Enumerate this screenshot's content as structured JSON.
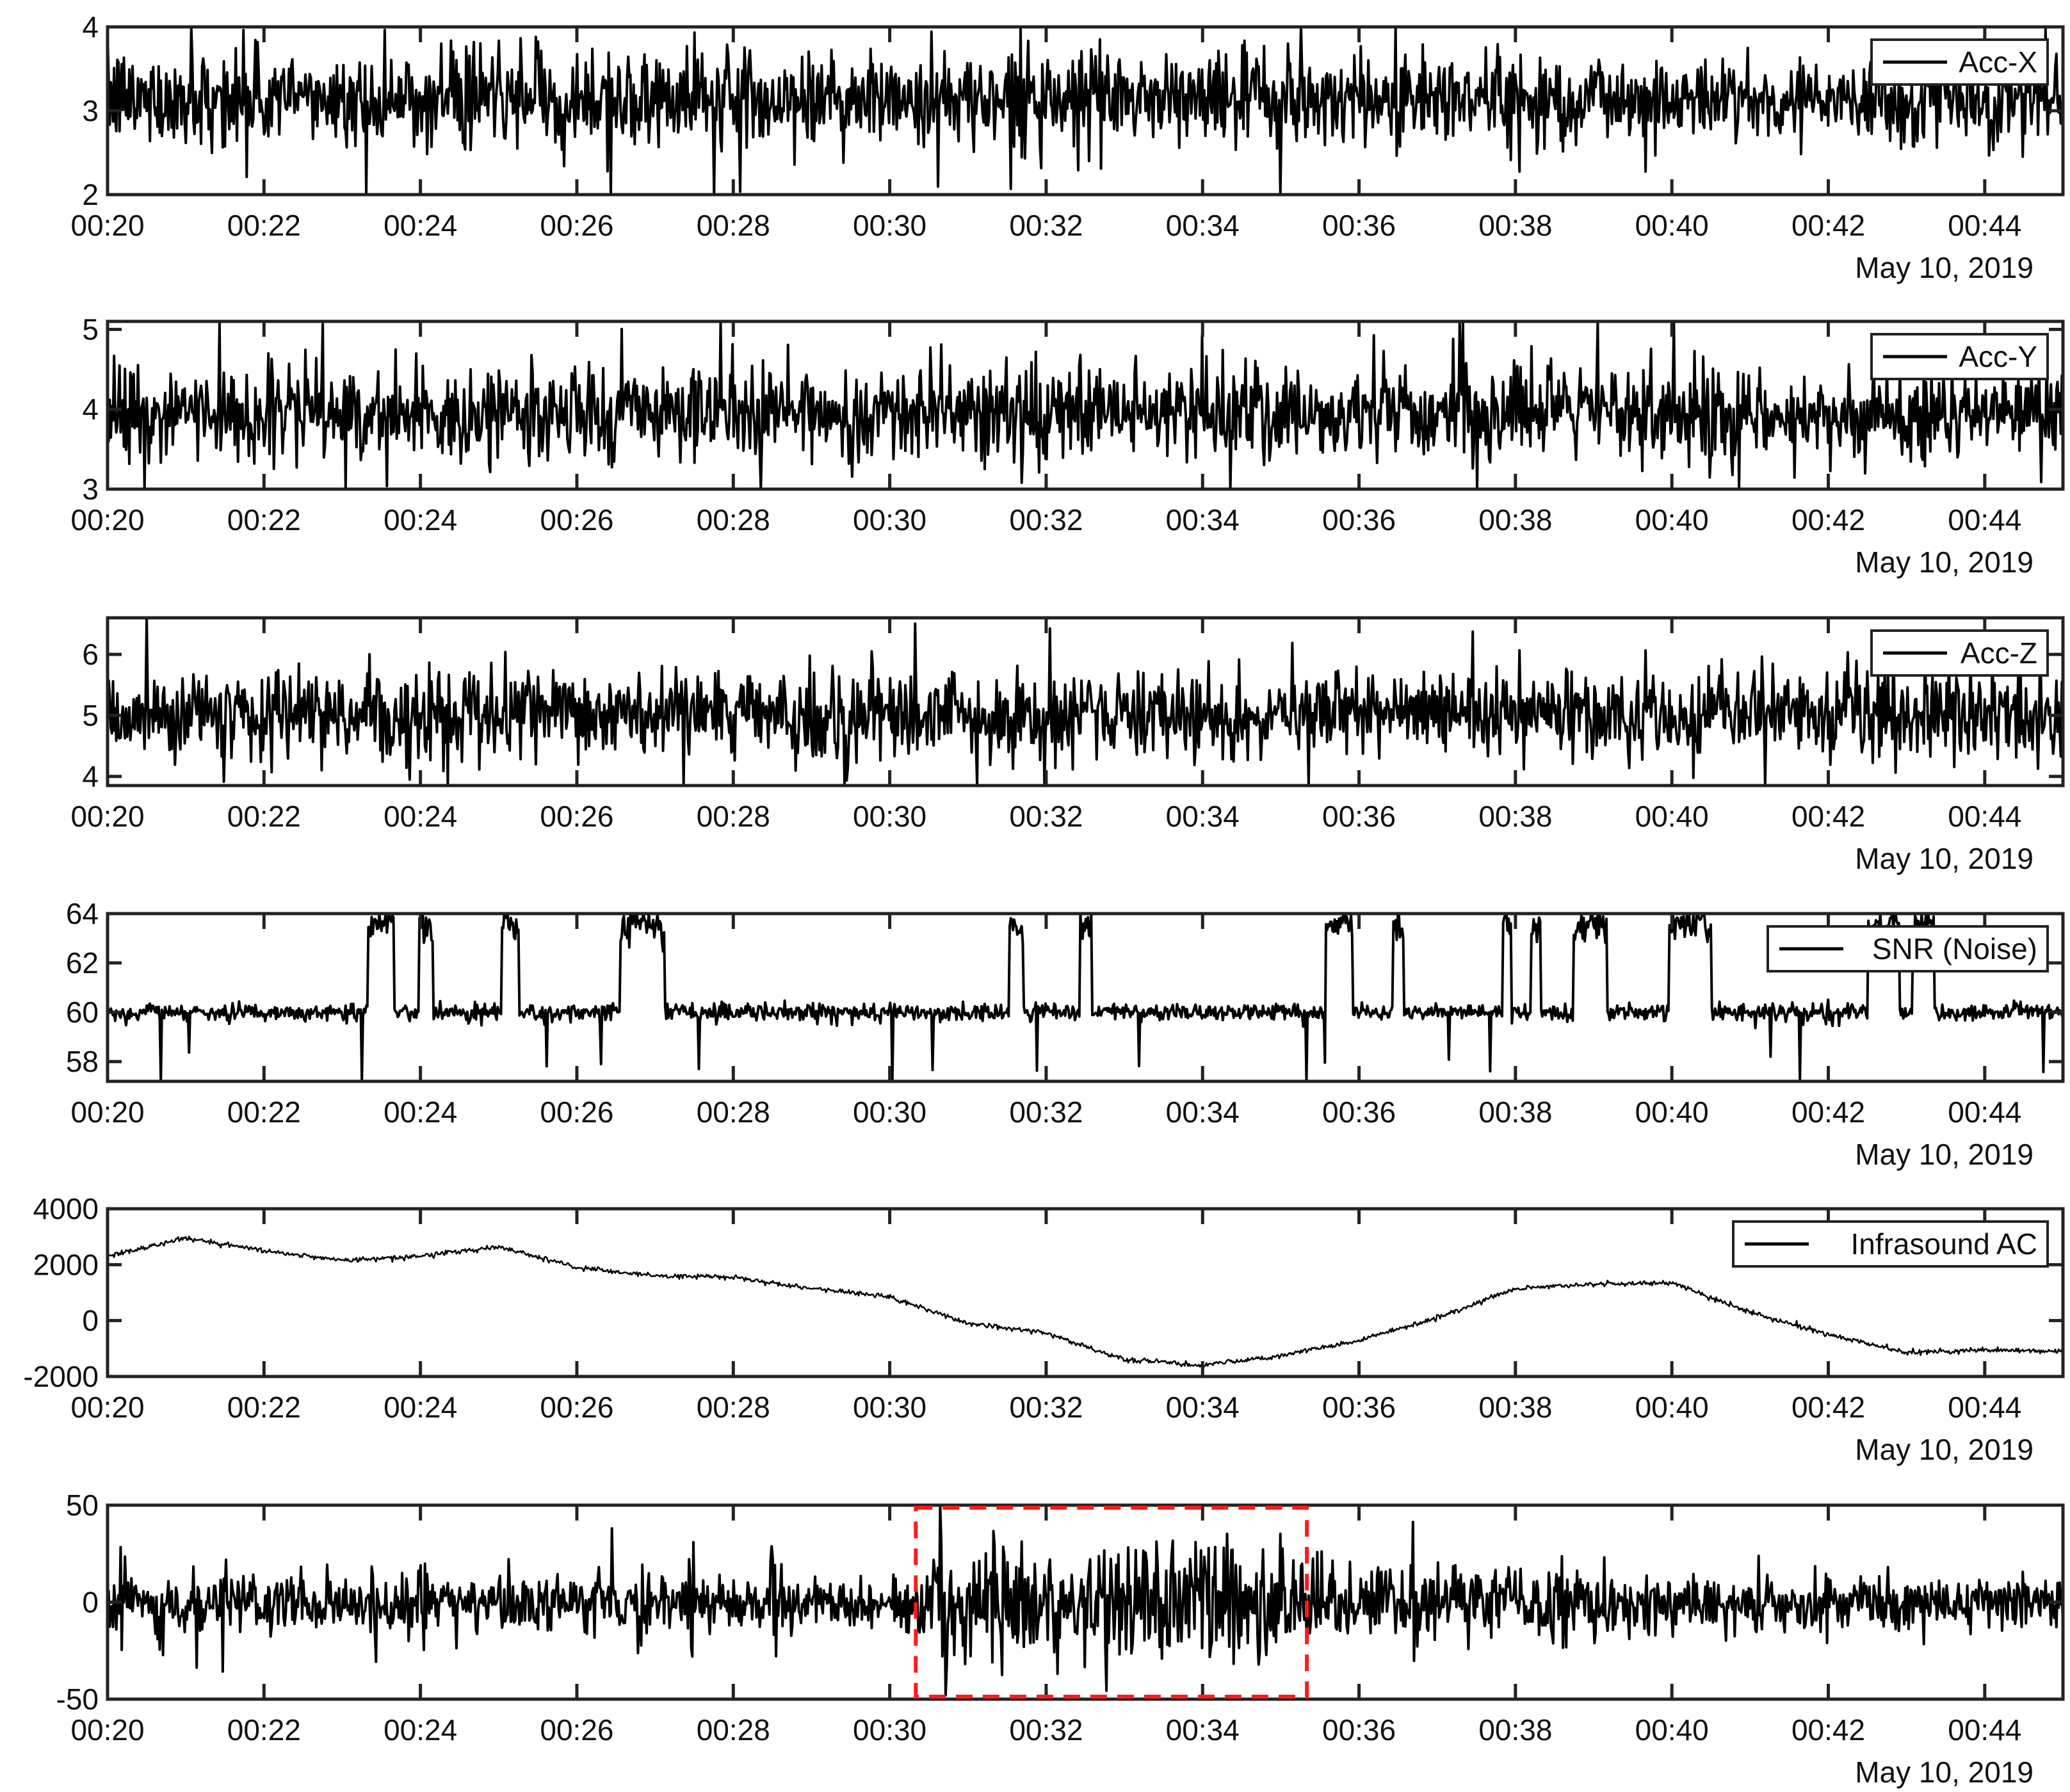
{
  "figure": {
    "panels": 6,
    "line_color": "#000000",
    "highlight_color": "#ff1a1a",
    "background": "#ffffff"
  },
  "chart_data": [
    {
      "type": "line",
      "series": [
        {
          "name": "Acc-X",
          "baseline": 3.15,
          "noise": 0.28,
          "values": []
        }
      ],
      "x": {
        "range": [
          "00:20",
          "00:45"
        ],
        "tick_labels": [
          "00:20",
          "00:22",
          "00:24",
          "00:26",
          "00:28",
          "00:30",
          "00:32",
          "00:34",
          "00:36",
          "00:38",
          "00:40",
          "00:42",
          "00:44"
        ]
      },
      "ylim": [
        2,
        4
      ],
      "yticks": [
        2,
        3,
        4
      ],
      "date_label": "May 10, 2019",
      "legend": "top-right"
    },
    {
      "type": "line",
      "series": [
        {
          "name": "Acc-Y",
          "baseline": 3.95,
          "noise": 0.3,
          "values": []
        }
      ],
      "x": {
        "range": [
          "00:20",
          "00:45"
        ],
        "tick_labels": [
          "00:20",
          "00:22",
          "00:24",
          "00:26",
          "00:28",
          "00:30",
          "00:32",
          "00:34",
          "00:36",
          "00:38",
          "00:40",
          "00:42",
          "00:44"
        ]
      },
      "ylim": [
        3,
        5.1
      ],
      "yticks": [
        3,
        4,
        5
      ],
      "date_label": "May 10, 2019",
      "legend": "top-right"
    },
    {
      "type": "line",
      "series": [
        {
          "name": "Acc-Z",
          "baseline": 5.0,
          "noise": 0.35,
          "values": []
        }
      ],
      "x": {
        "range": [
          "00:20",
          "00:45"
        ],
        "tick_labels": [
          "00:20",
          "00:22",
          "00:24",
          "00:26",
          "00:28",
          "00:30",
          "00:32",
          "00:34",
          "00:36",
          "00:38",
          "00:40",
          "00:42",
          "00:44"
        ]
      },
      "ylim": [
        3.85,
        6.6
      ],
      "yticks": [
        4,
        5,
        6
      ],
      "date_label": "May 10, 2019",
      "legend": "top-right"
    },
    {
      "type": "line",
      "series": [
        {
          "name": "SNR (Noise)",
          "baseline": 60.0,
          "peak": 63.5,
          "values": []
        }
      ],
      "x": {
        "range": [
          "00:20",
          "00:45"
        ],
        "tick_labels": [
          "00:20",
          "00:22",
          "00:24",
          "00:26",
          "00:28",
          "00:30",
          "00:32",
          "00:34",
          "00:36",
          "00:38",
          "00:40",
          "00:42",
          "00:44"
        ]
      },
      "ylim": [
        57.2,
        64.0
      ],
      "yticks": [
        58,
        60,
        62,
        64
      ],
      "date_label": "May 10, 2019",
      "legend": "top-right"
    },
    {
      "type": "line",
      "series": [
        {
          "name": "Infrasound AC",
          "trend_x": [
            "00:20",
            "00:21",
            "00:22",
            "00:23",
            "00:24",
            "00:25",
            "00:26",
            "00:27",
            "00:28",
            "00:29",
            "00:30",
            "00:31",
            "00:32",
            "00:33",
            "00:34",
            "00:35",
            "00:36",
            "00:37",
            "00:38",
            "00:39",
            "00:40",
            "00:41",
            "00:42",
            "00:43",
            "00:44",
            "00:45"
          ],
          "trend_y": [
            2300,
            2950,
            2500,
            2150,
            2300,
            2650,
            1900,
            1600,
            1550,
            1150,
            850,
            -100,
            -450,
            -1400,
            -1600,
            -1250,
            -700,
            100,
            1150,
            1300,
            1350,
            300,
            -500,
            -1150,
            -1050,
            -1100
          ],
          "values": []
        }
      ],
      "x": {
        "range": [
          "00:20",
          "00:45"
        ],
        "tick_labels": [
          "00:20",
          "00:22",
          "00:24",
          "00:26",
          "00:28",
          "00:30",
          "00:32",
          "00:34",
          "00:36",
          "00:38",
          "00:40",
          "00:42",
          "00:44"
        ]
      },
      "ylim": [
        -2000,
        4000
      ],
      "yticks": [
        -2000,
        0,
        2000,
        4000
      ],
      "date_label": "May 10, 2019",
      "legend": "top-right"
    },
    {
      "type": "line",
      "series": [
        {
          "name": "",
          "baseline": 0,
          "noise": 8,
          "values": []
        }
      ],
      "x": {
        "range": [
          "00:20",
          "00:45"
        ],
        "tick_labels": [
          "00:20",
          "00:22",
          "00:24",
          "00:26",
          "00:28",
          "00:30",
          "00:32",
          "00:34",
          "00:36",
          "00:38",
          "00:40",
          "00:42",
          "00:44"
        ]
      },
      "ylim": [
        -50,
        50
      ],
      "yticks": [
        -50,
        0,
        50
      ],
      "highlight": {
        "from": "00:30:20",
        "to": "00:35:20",
        "ymin": -50,
        "ymax": 50,
        "style": "dashed"
      },
      "date_label": "May 10, 2019"
    }
  ]
}
